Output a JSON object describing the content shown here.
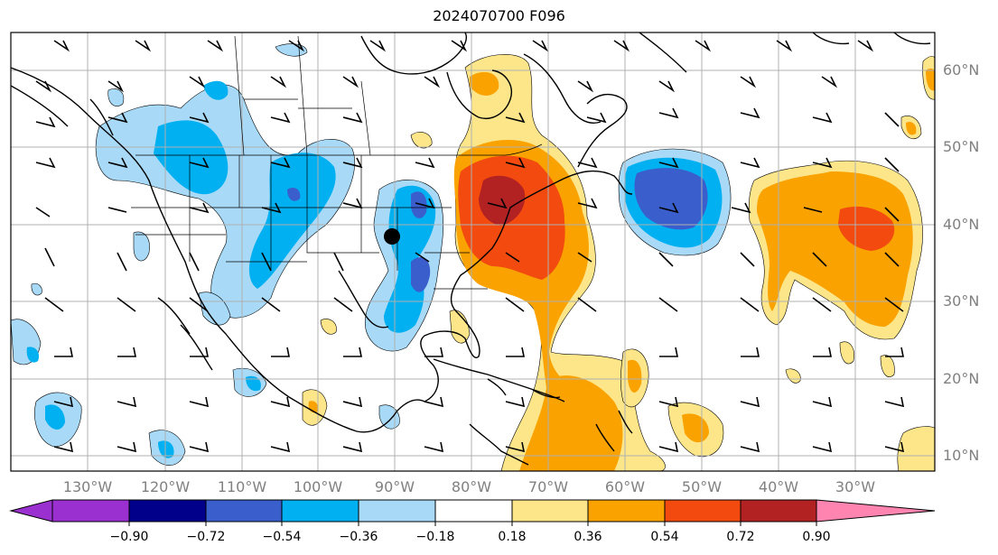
{
  "title": "2024070700 F096",
  "map": {
    "lon_labels": [
      "130°W",
      "120°W",
      "110°W",
      "100°W",
      "90°W",
      "80°W",
      "70°W",
      "60°W",
      "50°W",
      "40°W",
      "30°W"
    ],
    "lat_labels": [
      "60°N",
      "50°N",
      "40°N",
      "30°N",
      "20°N",
      "10°N"
    ],
    "contour_colors": {
      "lt_-0.90": "#9b30d0",
      "-0.90_-0.72": "#00008b",
      "-0.72_-0.54": "#3a5fcd",
      "-0.54_-0.36": "#00b0f0",
      "-0.36_-0.18": "#a8daf8",
      "-0.18_0.18": "#ffffff",
      "0.18_0.36": "#fde68a",
      "0.36_0.54": "#f9a200",
      "0.54_0.72": "#f24a0f",
      "0.72_0.90": "#b22222",
      "gt_0.90": "#ff85b0"
    },
    "marker": "black-dot"
  },
  "colorbar": {
    "ticks": [
      "−0.90",
      "−0.72",
      "−0.54",
      "−0.36",
      "−0.18",
      "0.18",
      "0.36",
      "0.54",
      "0.72",
      "0.90"
    ],
    "colors": [
      "#9b30d0",
      "#00008b",
      "#3a5fcd",
      "#00b0f0",
      "#a8daf8",
      "#ffffff",
      "#fde68a",
      "#f9a200",
      "#f24a0f",
      "#b22222",
      "#ff85b0"
    ]
  }
}
